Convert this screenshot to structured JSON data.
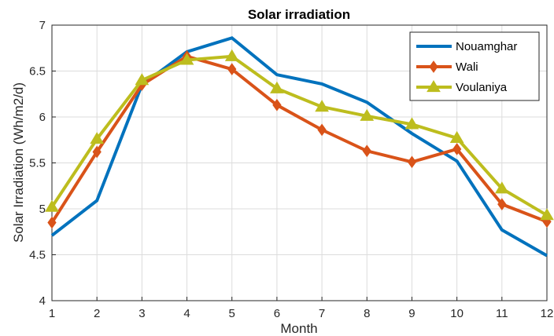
{
  "chart_data": {
    "type": "line",
    "title": "Solar irradiation",
    "xlabel": "Month",
    "ylabel": "Solar Irradiation (Wh/m2/d)",
    "x": [
      1,
      2,
      3,
      4,
      5,
      6,
      7,
      8,
      9,
      10,
      11,
      12
    ],
    "xlim": [
      1,
      12
    ],
    "ylim": [
      4,
      7
    ],
    "xticks": [
      "1",
      "2",
      "3",
      "4",
      "5",
      "6",
      "7",
      "8",
      "9",
      "10",
      "11",
      "12"
    ],
    "yticks": [
      "4",
      "4.5",
      "5",
      "5.5",
      "6",
      "6.5",
      "7"
    ],
    "grid": true,
    "legend_position": "top-right",
    "series": [
      {
        "name": "Nouamghar",
        "color": "#0072BD",
        "marker": "none",
        "values": [
          4.71,
          5.09,
          6.35,
          6.71,
          6.86,
          6.46,
          6.36,
          6.16,
          5.82,
          5.52,
          4.77,
          4.49
        ]
      },
      {
        "name": "Wali",
        "color": "#D95319",
        "marker": "diamond",
        "values": [
          4.85,
          5.62,
          6.35,
          6.66,
          6.52,
          6.13,
          5.86,
          5.63,
          5.51,
          5.65,
          5.05,
          4.86
        ]
      },
      {
        "name": "Voulaniya",
        "color": "#BDBD1E",
        "marker": "triangle",
        "values": [
          5.02,
          5.76,
          6.4,
          6.62,
          6.66,
          6.31,
          6.11,
          6.01,
          5.92,
          5.77,
          5.22,
          4.93
        ]
      }
    ]
  }
}
